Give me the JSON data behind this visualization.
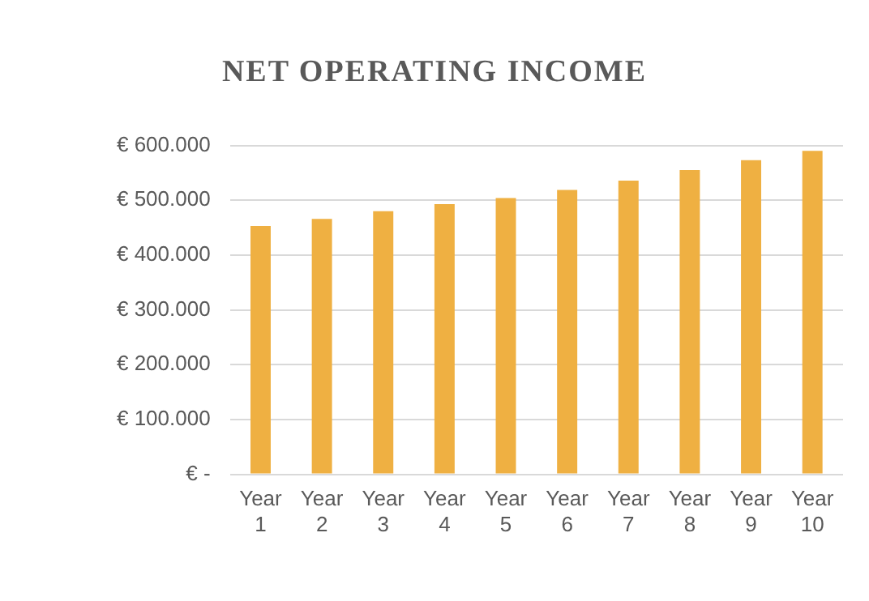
{
  "chart_data": {
    "type": "bar",
    "title": "NET OPERATING INCOME",
    "categories": [
      "Year 1",
      "Year 2",
      "Year 3",
      "Year 4",
      "Year 5",
      "Year 6",
      "Year 7",
      "Year 8",
      "Year 9",
      "Year 10"
    ],
    "values": [
      453000,
      466000,
      480000,
      493000,
      504000,
      519000,
      536000,
      555000,
      573000,
      590000
    ],
    "color": "#efb042",
    "ylim": [
      0,
      600000
    ],
    "yticks": [
      {
        "value": 0,
        "label": "€ -"
      },
      {
        "value": 100000,
        "label": "€ 100.000"
      },
      {
        "value": 200000,
        "label": "€ 200.000"
      },
      {
        "value": 300000,
        "label": "€ 300.000"
      },
      {
        "value": 400000,
        "label": "€ 400.000"
      },
      {
        "value": 500000,
        "label": "€ 500.000"
      },
      {
        "value": 600000,
        "label": "€ 600.000"
      }
    ],
    "grid": "y",
    "legend": false
  }
}
